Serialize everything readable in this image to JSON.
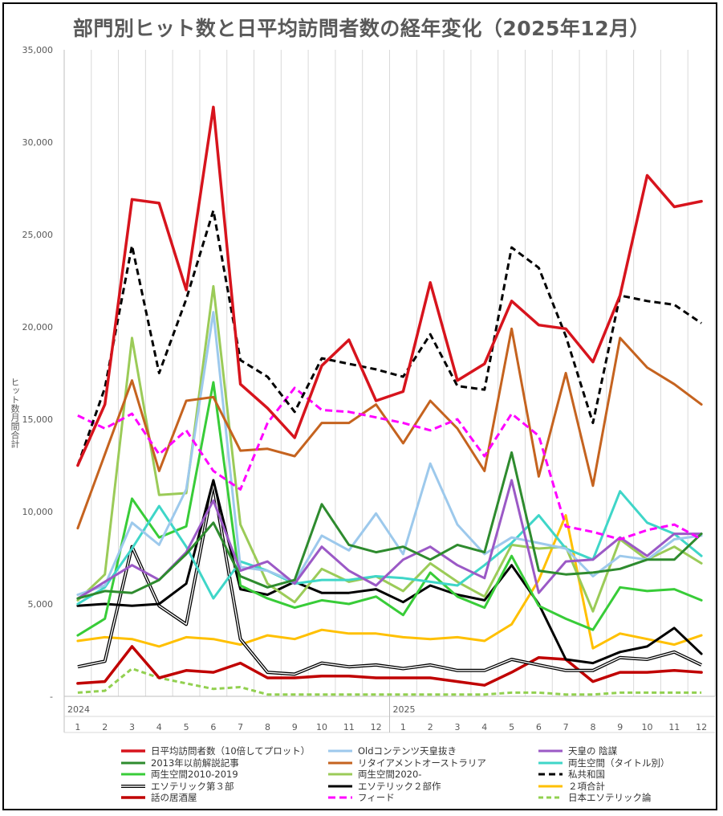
{
  "title": "部門別ヒット数と日平均訪問者数の経年変化（2025年12月）",
  "chart_data": {
    "type": "line",
    "title": "部門別ヒット数と日平均訪問者数の経年変化（2025年12月）",
    "ylabel": "ヒット数月間合計",
    "xlabel": "",
    "ylim": [
      0,
      35000
    ],
    "ytick_labels": [
      "-",
      "5,000",
      "10,000",
      "15,000",
      "20,000",
      "25,000",
      "30,000",
      "35,000"
    ],
    "year_labels": [
      "2024",
      "2025"
    ],
    "categories": [
      "1",
      "2",
      "3",
      "4",
      "5",
      "6",
      "7",
      "8",
      "9",
      "10",
      "11",
      "12",
      "1",
      "2",
      "3",
      "4",
      "5",
      "6",
      "7",
      "8",
      "9",
      "10",
      "11",
      "12"
    ],
    "grid": "vertical",
    "legend_position": "bottom",
    "series": [
      {
        "name": "日平均訪問者数（10倍してプロット）",
        "color": "#d7141d",
        "dash": "solid",
        "width": 3.5,
        "values": [
          12500,
          15800,
          26900,
          26700,
          22000,
          31900,
          16900,
          15600,
          14000,
          17900,
          19300,
          16000,
          16500,
          22400,
          17100,
          18000,
          21400,
          20100,
          19900,
          18100,
          21700,
          28200,
          26500,
          26800
        ]
      },
      {
        "name": "Oldコンテンツ天皇抜き",
        "color": "#9dc9ec",
        "dash": "solid",
        "width": 3,
        "values": [
          5500,
          6000,
          9400,
          8200,
          11200,
          20800,
          7000,
          6800,
          6200,
          8700,
          7900,
          9900,
          7700,
          12600,
          9300,
          7700,
          8600,
          8300,
          8000,
          6500,
          7600,
          7400,
          8500,
          8700
        ]
      },
      {
        "name": "天皇の 陰謀",
        "color": "#9b59c6",
        "dash": "solid",
        "width": 3,
        "values": [
          5300,
          6200,
          7100,
          6300,
          7800,
          10600,
          6800,
          7300,
          6100,
          8100,
          6800,
          6000,
          7400,
          8100,
          7100,
          6400,
          11700,
          5600,
          7300,
          7400,
          8600,
          7600,
          8800,
          8800
        ]
      },
      {
        "name": "2013年以前解説記事",
        "color": "#2e8b2e",
        "dash": "solid",
        "width": 3,
        "values": [
          5300,
          5700,
          5600,
          6300,
          7700,
          9400,
          6500,
          5900,
          6300,
          10400,
          8200,
          7800,
          8100,
          7400,
          8200,
          7800,
          13200,
          6800,
          6600,
          6700,
          6900,
          7400,
          7400,
          8800
        ]
      },
      {
        "name": "リタイアメントオーストラリア",
        "color": "#c5631f",
        "dash": "solid",
        "width": 3,
        "values": [
          9100,
          13100,
          17100,
          12200,
          16000,
          16200,
          13300,
          13400,
          13000,
          14800,
          14800,
          15800,
          13700,
          16000,
          14500,
          12200,
          19900,
          11900,
          17500,
          11400,
          19400,
          17800,
          16900,
          15800
        ]
      },
      {
        "name": "両生空間（タイトル別）",
        "color": "#3fd6c8",
        "dash": "solid",
        "width": 3,
        "values": [
          5000,
          5900,
          8000,
          10300,
          8100,
          5300,
          7300,
          6800,
          6100,
          6300,
          6300,
          6500,
          6400,
          6200,
          6000,
          7100,
          8300,
          9800,
          8000,
          7400,
          11100,
          9400,
          8800,
          7600
        ]
      },
      {
        "name": "両生空間2010-2019",
        "color": "#38cc38",
        "dash": "solid",
        "width": 3,
        "values": [
          3300,
          4200,
          10700,
          8600,
          9200,
          17000,
          6000,
          5300,
          4800,
          5200,
          5000,
          5400,
          4400,
          6700,
          5400,
          4800,
          7600,
          4900,
          4200,
          3600,
          5900,
          5700,
          5800,
          5200
        ]
      },
      {
        "name": "両生空間2020-",
        "color": "#9bcb58",
        "dash": "solid",
        "width": 3,
        "values": [
          5200,
          6600,
          19400,
          10900,
          11000,
          22200,
          9300,
          6100,
          5100,
          6900,
          6200,
          6500,
          5700,
          7200,
          6200,
          5400,
          8200,
          8000,
          8100,
          4600,
          8500,
          7400,
          8100,
          7200
        ]
      },
      {
        "name": "私共和国",
        "color": "#000000",
        "dash": "8,5",
        "width": 3,
        "values": [
          12500,
          16700,
          24400,
          17500,
          21500,
          26300,
          18200,
          17300,
          15400,
          18300,
          18000,
          17700,
          17300,
          19600,
          16800,
          16600,
          24300,
          23200,
          19500,
          14800,
          21700,
          21400,
          21200,
          20200
        ]
      },
      {
        "name": "エソテリック第３部",
        "color": "#000000",
        "dash": "double",
        "width": 3,
        "values": [
          1600,
          1900,
          8100,
          4900,
          3900,
          11500,
          3100,
          1300,
          1200,
          1800,
          1600,
          1700,
          1500,
          1700,
          1400,
          1400,
          2000,
          1700,
          1400,
          1400,
          2100,
          2000,
          2400,
          1700
        ]
      },
      {
        "name": "エソテリック２部作",
        "color": "#000000",
        "dash": "solid",
        "width": 3,
        "values": [
          4900,
          5000,
          4900,
          5000,
          6100,
          11700,
          5800,
          5500,
          6200,
          5600,
          5600,
          5800,
          5100,
          6000,
          5500,
          5200,
          7100,
          5000,
          2000,
          1800,
          2400,
          2700,
          3700,
          2300
        ]
      },
      {
        "name": "２項合計",
        "color": "#ffc000",
        "dash": "solid",
        "width": 3,
        "values": [
          3000,
          3200,
          3100,
          2700,
          3200,
          3100,
          2800,
          3300,
          3100,
          3600,
          3400,
          3400,
          3200,
          3100,
          3200,
          3000,
          3900,
          6300,
          9800,
          2600,
          3400,
          3100,
          2800,
          3300
        ]
      },
      {
        "name": "話の居酒屋",
        "color": "#c00000",
        "dash": "solid",
        "width": 3.5,
        "values": [
          700,
          800,
          2700,
          1000,
          1400,
          1300,
          1800,
          1000,
          1000,
          1100,
          1100,
          1000,
          1000,
          1000,
          800,
          600,
          1300,
          2100,
          2000,
          800,
          1300,
          1300,
          1400,
          1300
        ]
      },
      {
        "name": "フィード",
        "color": "#ff00ff",
        "dash": "9,5",
        "width": 3,
        "values": [
          15200,
          14500,
          15300,
          13100,
          14400,
          12200,
          11200,
          14800,
          16700,
          15500,
          15400,
          15100,
          14800,
          14400,
          15000,
          13000,
          15300,
          14100,
          9200,
          8900,
          8500,
          9000,
          9300,
          8500
        ]
      },
      {
        "name": "日本エソテリック論",
        "color": "#92d050",
        "dash": "6,4",
        "width": 3,
        "values": [
          200,
          300,
          1500,
          1000,
          700,
          400,
          500,
          100,
          100,
          100,
          100,
          100,
          100,
          100,
          100,
          100,
          200,
          200,
          100,
          100,
          200,
          200,
          200,
          200
        ]
      }
    ]
  }
}
